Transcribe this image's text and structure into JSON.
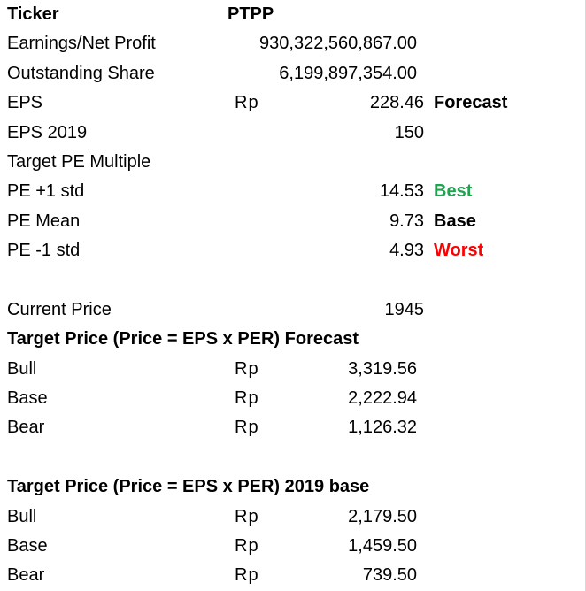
{
  "header": {
    "ticker_label": "Ticker",
    "ticker_value": "PTPP"
  },
  "rows": {
    "earnings": {
      "label": "Earnings/Net Profit",
      "value": "930,322,560,867.00"
    },
    "shares": {
      "label": "Outstanding Share",
      "value": "6,199,897,354.00"
    },
    "eps": {
      "label": "EPS",
      "currency": "Rp",
      "value": "228.46",
      "note": "Forecast"
    },
    "eps2019": {
      "label": "EPS 2019",
      "value": "150"
    },
    "target_pe": {
      "label": "Target PE Multiple"
    },
    "pe_plus": {
      "label": "PE +1 std",
      "value": "14.53",
      "note": "Best"
    },
    "pe_mean": {
      "label": "PE Mean",
      "value": "9.73",
      "note": "Base"
    },
    "pe_minus": {
      "label": "PE -1 std",
      "value": "4.93",
      "note": "Worst"
    },
    "current_price": {
      "label": "Current Price",
      "value": "1945"
    }
  },
  "forecast_section": {
    "title": "Target Price (Price = EPS x PER) Forecast",
    "rows": [
      {
        "label": "Bull",
        "currency": "Rp",
        "value": "3,319.56"
      },
      {
        "label": "Base",
        "currency": "Rp",
        "value": "2,222.94"
      },
      {
        "label": "Bear",
        "currency": "Rp",
        "value": "1,126.32"
      }
    ]
  },
  "base2019_section": {
    "title": "Target Price (Price = EPS x PER) 2019 base",
    "rows": [
      {
        "label": "Bull",
        "currency": "Rp",
        "value": "2,179.50"
      },
      {
        "label": "Base",
        "currency": "Rp",
        "value": "1,459.50"
      },
      {
        "label": "Bear",
        "currency": "Rp",
        "value": "739.50"
      }
    ]
  },
  "colors": {
    "best": "#1ea34f",
    "worst": "#ff0000",
    "gridline": "#d9d9d9"
  }
}
